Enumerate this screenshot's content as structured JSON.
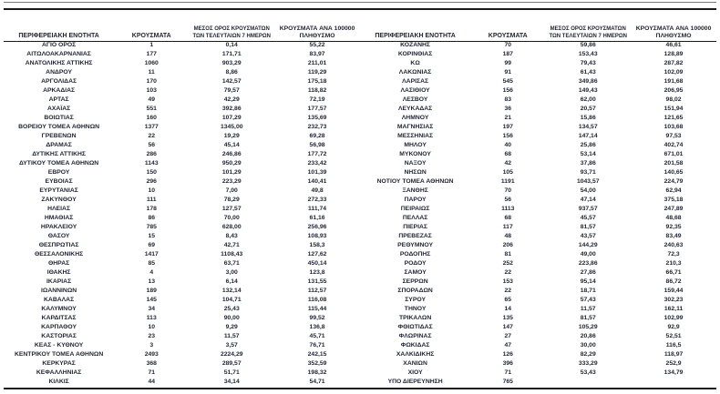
{
  "table": {
    "header": {
      "region": "ΠΕΡΙΦΕΡΕΙΑΚΗ ΕΝΟΤΗΤΑ",
      "cases": "ΚΡΟΥΣΜΑΤΑ",
      "avg_line1": "ΜΕΣΟΣ ΟΡΟΣ ΚΡΟΥΣΜΑΤΩΝ",
      "avg_line2": "ΤΩΝ ΤΕΛΕΥΤΑΙΩΝ 7 ΗΜΕΡΩΝ",
      "per100k_line1": "ΚΡΟΥΣΜΑΤΑ ΑΝΑ 100000",
      "per100k_line2": "ΠΛΗΘΥΣΜΟ"
    },
    "left_rows": [
      [
        "ΑΓΙΟ ΟΡΟΣ",
        "1",
        "0,14",
        "55,22"
      ],
      [
        "ΑΙΤΩΛΟΑΚΑΡΝΑΝΙΑΣ",
        "177",
        "171,71",
        "83,97"
      ],
      [
        "ΑΝΑΤΟΛΙΚΗΣ ΑΤΤΙΚΗΣ",
        "1060",
        "903,29",
        "211,01"
      ],
      [
        "ΑΝΔΡΟΥ",
        "11",
        "8,86",
        "119,29"
      ],
      [
        "ΑΡΓΟΛΙΔΑΣ",
        "170",
        "142,57",
        "175,18"
      ],
      [
        "ΑΡΚΑΔΙΑΣ",
        "103",
        "79,57",
        "118,82"
      ],
      [
        "ΑΡΤΑΣ",
        "49",
        "42,29",
        "72,19"
      ],
      [
        "ΑΧΑΪΑΣ",
        "551",
        "392,86",
        "177,57"
      ],
      [
        "ΒΟΙΩΤΙΑΣ",
        "160",
        "107,29",
        "135,69"
      ],
      [
        "ΒΟΡΕΙΟΥ ΤΟΜΕΑ ΑΘΗΝΩΝ",
        "1377",
        "1345,00",
        "232,73"
      ],
      [
        "ΓΡΕΒΕΝΩΝ",
        "22",
        "19,29",
        "69,28"
      ],
      [
        "ΔΡΑΜΑΣ",
        "56",
        "45,14",
        "56,98"
      ],
      [
        "ΔΥΤΙΚΗΣ ΑΤΤΙΚΗΣ",
        "286",
        "246,86",
        "177,72"
      ],
      [
        "ΔΥΤΙΚΟΥ ΤΟΜΕΑ ΑΘΗΝΩΝ",
        "1143",
        "950,29",
        "233,42"
      ],
      [
        "ΕΒΡΟΥ",
        "150",
        "101,29",
        "101,39"
      ],
      [
        "ΕΥΒΟΙΑΣ",
        "296",
        "223,29",
        "140,41"
      ],
      [
        "ΕΥΡΥΤΑΝΙΑΣ",
        "10",
        "7,00",
        "49,8"
      ],
      [
        "ΖΑΚΥΝΘΟΥ",
        "111",
        "78,29",
        "272,33"
      ],
      [
        "ΗΛΕΙΑΣ",
        "178",
        "127,57",
        "111,74"
      ],
      [
        "ΗΜΑΘΙΑΣ",
        "86",
        "70,00",
        "61,16"
      ],
      [
        "ΗΡΑΚΛΕΙΟΥ",
        "785",
        "628,00",
        "256,96"
      ],
      [
        "ΘΑΣΟΥ",
        "15",
        "8,43",
        "108,93"
      ],
      [
        "ΘΕΣΠΡΩΤΙΑΣ",
        "69",
        "42,71",
        "158,3"
      ],
      [
        "ΘΕΣΣΑΛΟΝΙΚΗΣ",
        "1417",
        "1108,43",
        "127,62"
      ],
      [
        "ΘΗΡΑΣ",
        "85",
        "63,71",
        "450,14"
      ],
      [
        "ΙΘΑΚΗΣ",
        "4",
        "3,00",
        "123,8"
      ],
      [
        "ΙΚΑΡΙΑΣ",
        "13",
        "6,14",
        "131,55"
      ],
      [
        "ΙΩΑΝΝΙΝΩΝ",
        "189",
        "132,14",
        "112,57"
      ],
      [
        "ΚΑΒΑΛΑΣ",
        "145",
        "104,71",
        "116,08"
      ],
      [
        "ΚΑΛΥΜΝΟΥ",
        "34",
        "25,43",
        "115,44"
      ],
      [
        "ΚΑΡΔΙΤΣΑΣ",
        "113",
        "90,00",
        "99,52"
      ],
      [
        "ΚΑΡΠΑΘΟΥ",
        "10",
        "9,29",
        "136,8"
      ],
      [
        "ΚΑΣΤΟΡΙΑΣ",
        "23",
        "11,57",
        "45,71"
      ],
      [
        "ΚΕΑΣ - ΚΥΘΝΟΥ",
        "3",
        "3,57",
        "76,71"
      ],
      [
        "ΚΕΝΤΡΙΚΟΥ ΤΟΜΕΑ ΑΘΗΝΩΝ",
        "2493",
        "2224,29",
        "242,15"
      ],
      [
        "ΚΕΡΚΥΡΑΣ",
        "368",
        "289,57",
        "352,59"
      ],
      [
        "ΚΕΦΑΛΛΗΝΙΑΣ",
        "71",
        "51,71",
        "198,32"
      ],
      [
        "ΚΙΛΚΙΣ",
        "44",
        "34,14",
        "54,71"
      ]
    ],
    "right_rows": [
      [
        "ΚΟΖΑΝΗΣ",
        "70",
        "59,86",
        "46,61"
      ],
      [
        "ΚΟΡΙΝΘΙΑΣ",
        "187",
        "153,43",
        "128,89"
      ],
      [
        "ΚΩ",
        "99",
        "79,43",
        "287,82"
      ],
      [
        "ΛΑΚΩΝΙΑΣ",
        "91",
        "61,43",
        "102,09"
      ],
      [
        "ΛΑΡΙΣΑΣ",
        "545",
        "349,86",
        "191,68"
      ],
      [
        "ΛΑΣΙΘΙΟΥ",
        "156",
        "149,43",
        "206,95"
      ],
      [
        "ΛΕΣΒΟΥ",
        "83",
        "62,00",
        "98,02"
      ],
      [
        "ΛΕΥΚΑΔΑΣ",
        "36",
        "20,57",
        "151,94"
      ],
      [
        "ΛΗΜΝΟΥ",
        "21",
        "15,86",
        "121,65"
      ],
      [
        "ΜΑΓΝΗΣΙΑΣ",
        "197",
        "134,57",
        "103,68"
      ],
      [
        "ΜΕΣΣΗΝΙΑΣ",
        "156",
        "147,14",
        "97,53"
      ],
      [
        "ΜΗΛΟΥ",
        "40",
        "25,86",
        "402,74"
      ],
      [
        "ΜΥΚΟΝΟΥ",
        "68",
        "53,14",
        "671,01"
      ],
      [
        "ΝΑΞΟΥ",
        "42",
        "37,86",
        "201,58"
      ],
      [
        "ΝΗΣΩΝ",
        "105",
        "93,71",
        "140,65"
      ],
      [
        "ΝΟΤΙΟΥ ΤΟΜΕΑ ΑΘΗΝΩΝ",
        "1191",
        "1043,57",
        "224,79"
      ],
      [
        "ΞΑΝΘΗΣ",
        "70",
        "54,00",
        "62,94"
      ],
      [
        "ΠΑΡΟΥ",
        "56",
        "47,14",
        "375,18"
      ],
      [
        "ΠΕΙΡΑΙΩΣ",
        "1113",
        "937,57",
        "247,89"
      ],
      [
        "ΠΕΛΛΑΣ",
        "68",
        "45,57",
        "48,68"
      ],
      [
        "ΠΙΕΡΙΑΣ",
        "117",
        "81,57",
        "92,35"
      ],
      [
        "ΠΡΕΒΕΖΑΣ",
        "48",
        "43,57",
        "83,49"
      ],
      [
        "ΡΕΘΥΜΝΟΥ",
        "206",
        "144,29",
        "240,63"
      ],
      [
        "ΡΟΔΟΠΗΣ",
        "81",
        "49,00",
        "72,3"
      ],
      [
        "ΡΟΔΟΥ",
        "252",
        "223,86",
        "210,3"
      ],
      [
        "ΣΑΜΟΥ",
        "22",
        "27,86",
        "66,71"
      ],
      [
        "ΣΕΡΡΩΝ",
        "153",
        "95,14",
        "86,72"
      ],
      [
        "ΣΠΟΡΑΔΩΝ",
        "22",
        "18,71",
        "159,44"
      ],
      [
        "ΣΥΡΟΥ",
        "65",
        "57,43",
        "302,23"
      ],
      [
        "ΤΗΝΟΥ",
        "14",
        "11,57",
        "162,11"
      ],
      [
        "ΤΡΙΚΑΛΩΝ",
        "135",
        "81,57",
        "102,99"
      ],
      [
        "ΦΘΙΩΤΙΔΑΣ",
        "147",
        "105,29",
        "92,9"
      ],
      [
        "ΦΛΩΡΙΝΑΣ",
        "27",
        "20,86",
        "52,51"
      ],
      [
        "ΦΩΚΙΔΑΣ",
        "47",
        "30,00",
        "116,5"
      ],
      [
        "ΧΑΛΚΙΔΙΚΗΣ",
        "126",
        "82,29",
        "118,97"
      ],
      [
        "ΧΑΝΙΩΝ",
        "396",
        "333,29",
        "252,9"
      ],
      [
        "ΧΙΟΥ",
        "71",
        "53,43",
        "134,79"
      ],
      [
        "ΥΠΟ ΔΙΕΡΕΥΝΗΣΗ",
        "765",
        "",
        ""
      ]
    ]
  }
}
